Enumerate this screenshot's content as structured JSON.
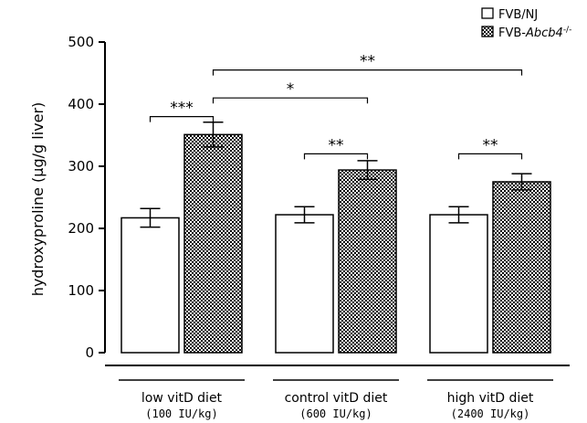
{
  "chart_data": {
    "type": "bar",
    "title": "",
    "ylabel": "hydroxyproline (µg/g liver)",
    "ylim": [
      0,
      500
    ],
    "yticks": [
      "0",
      "100",
      "200",
      "300",
      "400",
      "500"
    ],
    "categories": [
      {
        "label": "low vitD diet",
        "sublabel": "(100 IU/kg)"
      },
      {
        "label": "control vitD diet",
        "sublabel": "(600 IU/kg)"
      },
      {
        "label": "high vitD diet",
        "sublabel": "(2400 IU/kg)"
      }
    ],
    "series": [
      {
        "name": "FVB/NJ",
        "values": [
          217,
          222,
          222
        ],
        "errors": [
          15,
          13,
          13
        ],
        "fill": "#ffffff",
        "pattern": "none"
      },
      {
        "name": "FVB-Abcb4⁻/⁻",
        "values": [
          351,
          294,
          275
        ],
        "errors": [
          20,
          15,
          13
        ],
        "fill": "#ffffff",
        "pattern": "checkerboard"
      }
    ],
    "legend": {
      "position": "top-right",
      "items": [
        {
          "text": "FVB/NJ"
        },
        {
          "text_prefix": "FVB-",
          "text_italic": "Abcb4",
          "text_sup": "-/-"
        }
      ]
    },
    "significance": [
      {
        "label": "***",
        "from": [
          0,
          0
        ],
        "to": [
          0,
          1
        ],
        "level": 380
      },
      {
        "label": "*",
        "from": [
          0,
          1
        ],
        "to": [
          1,
          1
        ],
        "level": 410
      },
      {
        "label": "**",
        "from": [
          0,
          1
        ],
        "to": [
          2,
          1
        ],
        "level": 455
      },
      {
        "label": "**",
        "from": [
          1,
          0
        ],
        "to": [
          1,
          1
        ],
        "level": 320
      },
      {
        "label": "**",
        "from": [
          2,
          0
        ],
        "to": [
          2,
          1
        ],
        "level": 320
      }
    ],
    "grid": false
  }
}
